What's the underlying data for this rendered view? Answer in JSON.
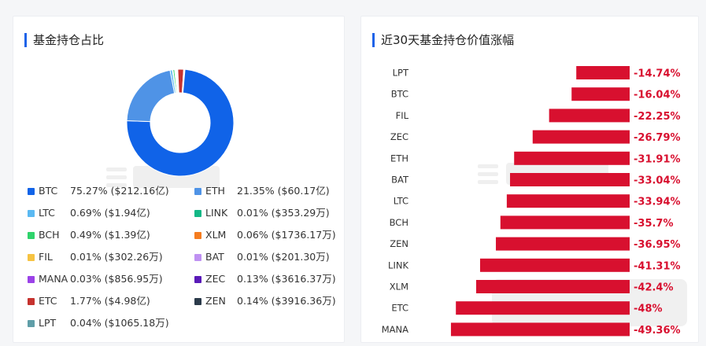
{
  "left_panel": {
    "title": "基金持仓占比"
  },
  "right_panel": {
    "title": "近30天基金持仓价值涨幅"
  },
  "chart_data": [
    {
      "type": "pie",
      "title": "基金持仓占比",
      "slices": [
        {
          "name": "BTC",
          "value": 75.27,
          "label": "75.27% ($212.16亿)",
          "color": "#1063e8"
        },
        {
          "name": "ETH",
          "value": 21.35,
          "label": "21.35% ($60.17亿)",
          "color": "#4f93e6"
        },
        {
          "name": "LTC",
          "value": 0.69,
          "label": "0.69% ($1.94亿)",
          "color": "#5bb9f2"
        },
        {
          "name": "LINK",
          "value": 0.01,
          "label": "0.01% ($353.29万)",
          "color": "#12b886"
        },
        {
          "name": "BCH",
          "value": 0.49,
          "label": "0.49% ($1.39亿)",
          "color": "#2fd36b"
        },
        {
          "name": "XLM",
          "value": 0.06,
          "label": "0.06% ($1736.17万)",
          "color": "#f57c1f"
        },
        {
          "name": "FIL",
          "value": 0.01,
          "label": "0.01% ($302.26万)",
          "color": "#f6c342"
        },
        {
          "name": "BAT",
          "value": 0.01,
          "label": "0.01% ($201.30万)",
          "color": "#bf91f2"
        },
        {
          "name": "MANA",
          "value": 0.03,
          "label": "0.03% ($856.95万)",
          "color": "#9b42e8"
        },
        {
          "name": "ZEC",
          "value": 0.13,
          "label": "0.13% ($3616.37万)",
          "color": "#5a1ab8"
        },
        {
          "name": "ETC",
          "value": 1.77,
          "label": "1.77% ($4.98亿)",
          "color": "#c6322e"
        },
        {
          "name": "ZEN",
          "value": 0.14,
          "label": "0.14% ($3916.36万)",
          "color": "#2b3a4a"
        },
        {
          "name": "LPT",
          "value": 0.04,
          "label": "0.04% ($1065.18万)",
          "color": "#5f9ea8"
        }
      ]
    },
    {
      "type": "bar",
      "orientation": "horizontal",
      "title": "近30天基金持仓价值涨幅",
      "categories": [
        "LPT",
        "BTC",
        "FIL",
        "ZEC",
        "ETH",
        "BAT",
        "LTC",
        "BCH",
        "ZEN",
        "LINK",
        "XLM",
        "ETC",
        "MANA"
      ],
      "values": [
        -14.74,
        -16.04,
        -22.25,
        -26.79,
        -31.91,
        -33.04,
        -33.94,
        -35.7,
        -36.95,
        -41.31,
        -42.4,
        -48,
        -49.36
      ],
      "labels": [
        "-14.74%",
        "-16.04%",
        "-22.25%",
        "-26.79%",
        "-31.91%",
        "-33.04%",
        "-33.94%",
        "-35.7%",
        "-36.95%",
        "-41.31%",
        "-42.4%",
        "-48%",
        "-49.36%"
      ],
      "bar_color": "#d8102f",
      "label_color": "#d8102f"
    }
  ]
}
